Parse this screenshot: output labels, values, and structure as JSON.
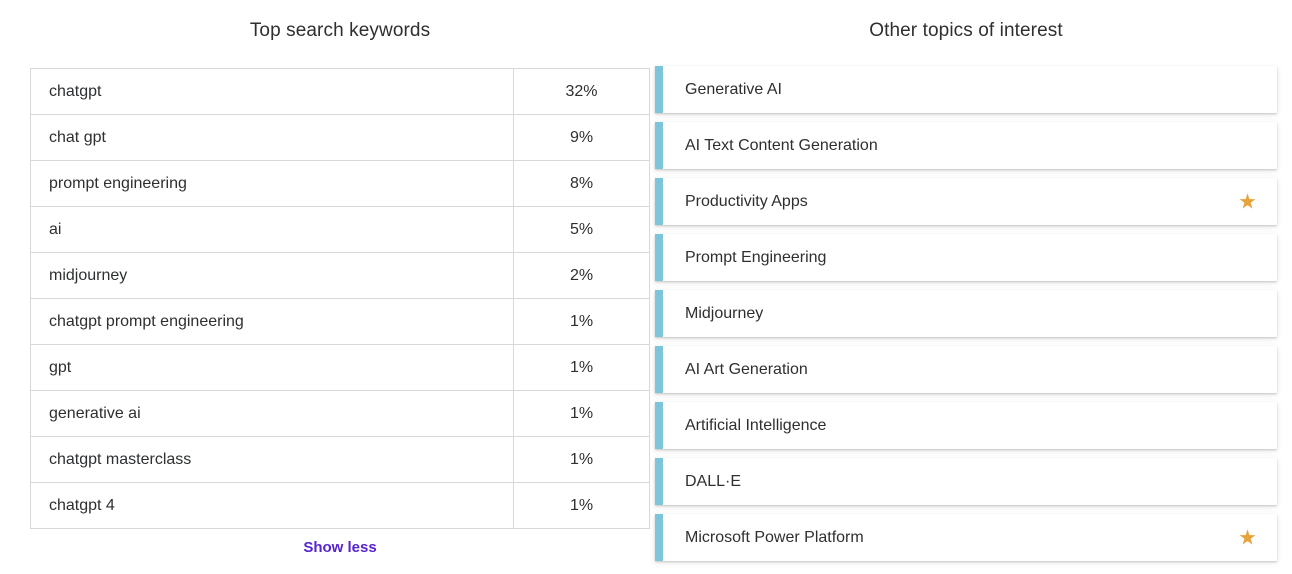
{
  "left_panel": {
    "title": "Top search keywords",
    "rows": [
      {
        "keyword": "chatgpt",
        "percent": "32%"
      },
      {
        "keyword": "chat gpt",
        "percent": "9%"
      },
      {
        "keyword": "prompt engineering",
        "percent": "8%"
      },
      {
        "keyword": "ai",
        "percent": "5%"
      },
      {
        "keyword": "midjourney",
        "percent": "2%"
      },
      {
        "keyword": "chatgpt prompt engineering",
        "percent": "1%"
      },
      {
        "keyword": "gpt",
        "percent": "1%"
      },
      {
        "keyword": "generative ai",
        "percent": "1%"
      },
      {
        "keyword": "chatgpt masterclass",
        "percent": "1%"
      },
      {
        "keyword": "chatgpt 4",
        "percent": "1%"
      }
    ],
    "show_less_label": "Show less"
  },
  "right_panel": {
    "title": "Other topics of interest",
    "items": [
      {
        "label": "Generative AI",
        "starred": false
      },
      {
        "label": "AI Text Content Generation",
        "starred": false
      },
      {
        "label": "Productivity Apps",
        "starred": true
      },
      {
        "label": "Prompt Engineering",
        "starred": false
      },
      {
        "label": "Midjourney",
        "starred": false
      },
      {
        "label": "AI Art Generation",
        "starred": false
      },
      {
        "label": "Artificial Intelligence",
        "starred": false
      },
      {
        "label": "DALL·E",
        "starred": false
      },
      {
        "label": "Microsoft Power Platform",
        "starred": true
      }
    ],
    "star_icon": "★"
  },
  "colors": {
    "accent_teal": "#7ec5da",
    "star_orange": "#e8a33d",
    "link_purple": "#5624d0",
    "text": "#2d2f31",
    "border": "#d6d9dc"
  }
}
